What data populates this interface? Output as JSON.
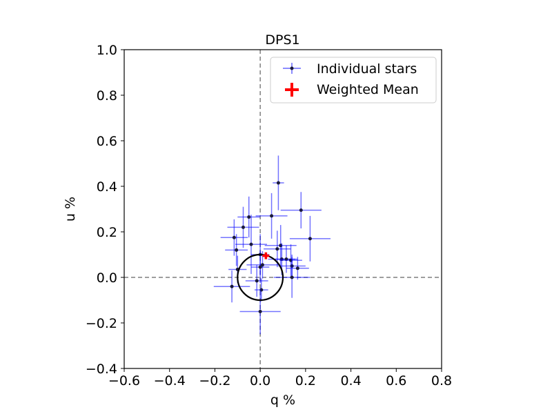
{
  "chart_data": {
    "type": "scatter",
    "title": "DPS1",
    "xlabel": "q %",
    "ylabel": "u %",
    "xlim": [
      -0.6,
      0.8
    ],
    "ylim": [
      -0.4,
      1.0
    ],
    "xticks": [
      -0.6,
      -0.4,
      -0.2,
      0.0,
      0.2,
      0.4,
      0.6,
      0.8
    ],
    "yticks": [
      -0.4,
      -0.2,
      0.0,
      0.2,
      0.4,
      0.6,
      0.8,
      1.0
    ],
    "xtick_labels": [
      "−0.6",
      "−0.4",
      "−0.2",
      "0.0",
      "0.2",
      "0.4",
      "0.6",
      "0.8"
    ],
    "ytick_labels": [
      "−0.4",
      "−0.2",
      "0.0",
      "0.2",
      "0.4",
      "0.6",
      "0.8",
      "1.0"
    ],
    "grid": false,
    "legend_position": "top-right",
    "reference_lines": {
      "x": 0.0,
      "y": 0.0,
      "style": "dashed",
      "color": "#7f7f7f"
    },
    "circle": {
      "center": [
        0.0,
        0.0
      ],
      "radius": 0.1,
      "color": "#000000"
    },
    "series": [
      {
        "name": "Individual stars",
        "color": "#0000ff",
        "point_color": "#1a1a3a",
        "points": [
          {
            "x": 0.08,
            "y": 0.415,
            "xerr": 0.025,
            "yerr": 0.12
          },
          {
            "x": 0.18,
            "y": 0.295,
            "xerr": 0.09,
            "yerr": 0.08
          },
          {
            "x": 0.05,
            "y": 0.27,
            "xerr": 0.07,
            "yerr": 0.1
          },
          {
            "x": -0.05,
            "y": 0.265,
            "xerr": 0.05,
            "yerr": 0.09
          },
          {
            "x": -0.075,
            "y": 0.22,
            "xerr": 0.07,
            "yerr": 0.09
          },
          {
            "x": 0.22,
            "y": 0.17,
            "xerr": 0.09,
            "yerr": 0.1
          },
          {
            "x": -0.115,
            "y": 0.175,
            "xerr": 0.06,
            "yerr": 0.08
          },
          {
            "x": -0.04,
            "y": 0.145,
            "xerr": 0.07,
            "yerr": 0.13
          },
          {
            "x": 0.09,
            "y": 0.14,
            "xerr": 0.07,
            "yerr": 0.09
          },
          {
            "x": 0.075,
            "y": 0.125,
            "xerr": 0.06,
            "yerr": 0.08
          },
          {
            "x": -0.105,
            "y": 0.12,
            "xerr": 0.05,
            "yerr": 0.07
          },
          {
            "x": 0.0,
            "y": 0.1,
            "xerr": 0.04,
            "yerr": 0.09
          },
          {
            "x": 0.095,
            "y": 0.08,
            "xerr": 0.06,
            "yerr": 0.07
          },
          {
            "x": 0.115,
            "y": 0.08,
            "xerr": 0.05,
            "yerr": 0.06
          },
          {
            "x": 0.135,
            "y": 0.075,
            "xerr": 0.05,
            "yerr": 0.07
          },
          {
            "x": 0.01,
            "y": 0.055,
            "xerr": 0.07,
            "yerr": 0.06
          },
          {
            "x": 0.14,
            "y": 0.05,
            "xerr": 0.06,
            "yerr": 0.05
          },
          {
            "x": 0.0,
            "y": 0.045,
            "xerr": 0.04,
            "yerr": 0.07
          },
          {
            "x": -0.1,
            "y": 0.035,
            "xerr": 0.04,
            "yerr": 0.06
          },
          {
            "x": 0.165,
            "y": 0.04,
            "xerr": 0.05,
            "yerr": 0.05
          },
          {
            "x": 0.14,
            "y": 0.0,
            "xerr": 0.08,
            "yerr": 0.09
          },
          {
            "x": -0.015,
            "y": -0.015,
            "xerr": 0.05,
            "yerr": 0.07
          },
          {
            "x": -0.125,
            "y": -0.04,
            "xerr": 0.08,
            "yerr": 0.07
          },
          {
            "x": 0.005,
            "y": -0.055,
            "xerr": 0.03,
            "yerr": 0.05
          },
          {
            "x": 0.0,
            "y": -0.15,
            "xerr": 0.09,
            "yerr": 0.1
          }
        ]
      },
      {
        "name": "Weighted Mean",
        "color": "#ff0000",
        "points": [
          {
            "x": 0.025,
            "y": 0.095,
            "xerr": 0.015,
            "yerr": 0.015
          }
        ]
      }
    ]
  }
}
